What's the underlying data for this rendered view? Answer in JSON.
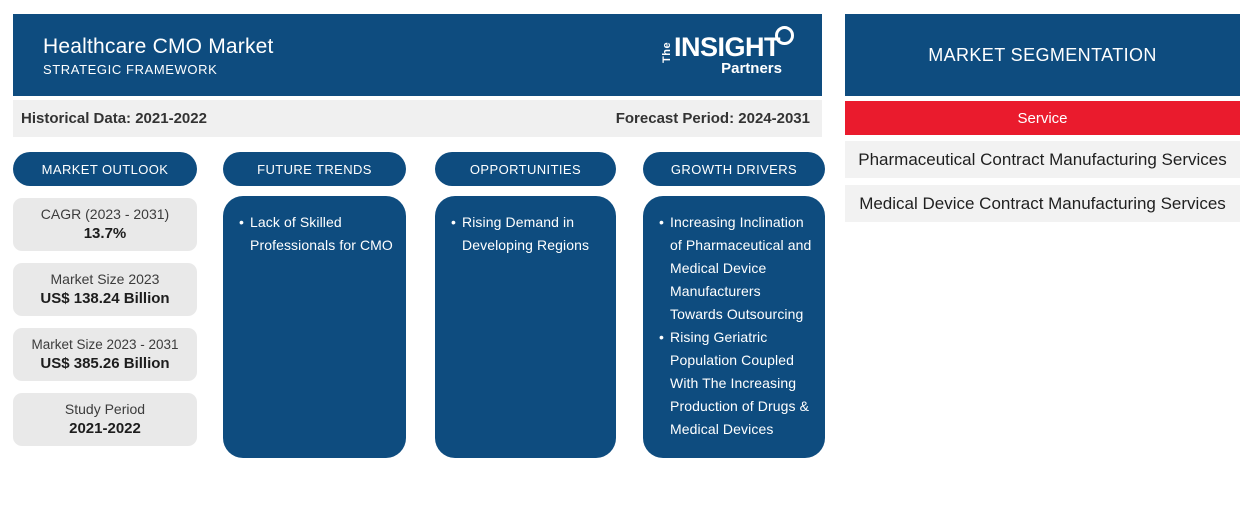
{
  "header": {
    "title": "Healthcare CMO Market",
    "subtitle": "STRATEGIC FRAMEWORK",
    "logo": {
      "the": "The",
      "insight": "INSIGHT",
      "partners": "Partners"
    }
  },
  "period_bar": {
    "historical": "Historical Data: 2021-2022",
    "forecast": "Forecast Period: 2024-2031"
  },
  "outlook": {
    "pill": "MARKET OUTLOOK",
    "stats": [
      {
        "label": "CAGR (2023 - 2031)",
        "value": "13.7%"
      },
      {
        "label": "Market Size 2023",
        "value": "US$ 138.24 Billion"
      },
      {
        "label": "Market Size 2023 - 2031",
        "value": "US$ 385.26 Billion"
      },
      {
        "label": "Study Period",
        "value": "2021-2022"
      }
    ]
  },
  "columns": [
    {
      "pill": "FUTURE TRENDS",
      "bullets": [
        "Lack of Skilled Professionals for CMO"
      ]
    },
    {
      "pill": "OPPORTUNITIES",
      "bullets": [
        "Rising Demand in Developing Regions"
      ]
    },
    {
      "pill": "GROWTH DRIVERS",
      "bullets": [
        "Increasing Inclination of Pharmaceutical and Medical Device Manufacturers Towards Outsourcing",
        "Rising Geriatric Population Coupled With The Increasing Production of Drugs & Medical Devices"
      ]
    }
  ],
  "segmentation": {
    "title": "MARKET SEGMENTATION",
    "category": "Service",
    "items": [
      "Pharmaceutical Contract Manufacturing Services",
      "Medical Device Contract Manufacturing Services"
    ]
  },
  "colors": {
    "brand_blue": "#0e4c7f",
    "accent_red": "#ea1b2d",
    "bar_gray": "#f0f0f0",
    "stat_gray": "#e9e9e9"
  }
}
